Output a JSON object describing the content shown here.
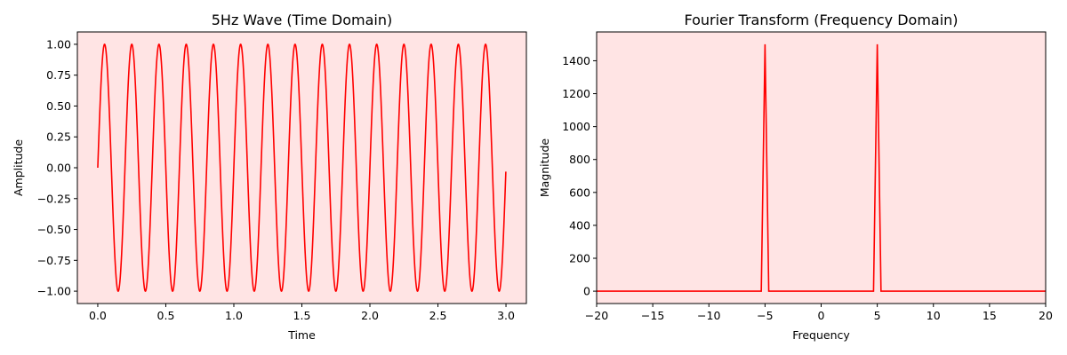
{
  "chart_data": [
    {
      "type": "line",
      "title": "5Hz Wave (Time Domain)",
      "xlabel": "Time",
      "ylabel": "Amplitude",
      "xlim": [
        -0.15,
        3.15
      ],
      "ylim": [
        -1.1,
        1.1
      ],
      "xticks": [
        0.0,
        0.5,
        1.0,
        1.5,
        2.0,
        2.5,
        3.0
      ],
      "xtick_labels": [
        "0.0",
        "0.5",
        "1.0",
        "1.5",
        "2.0",
        "2.5",
        "3.0"
      ],
      "yticks": [
        -1.0,
        -0.75,
        -0.5,
        -0.25,
        0.0,
        0.25,
        0.5,
        0.75,
        1.0
      ],
      "ytick_labels": [
        "−1.00",
        "−0.75",
        "−0.50",
        "−0.25",
        "0.00",
        "0.25",
        "0.50",
        "0.75",
        "1.00"
      ],
      "grid": false,
      "background_color": "#ffe4e4",
      "series": [
        {
          "color": "#ff0000",
          "frequency_hz": 5,
          "amplitude": 1,
          "t_range": [
            0,
            2.999
          ]
        }
      ]
    },
    {
      "type": "line",
      "title": "Fourier Transform (Frequency Domain)",
      "xlabel": "Frequency",
      "ylabel": "Magnitude",
      "xlim": [
        -20,
        20
      ],
      "ylim": [
        -75,
        1575
      ],
      "xticks": [
        -20,
        -15,
        -10,
        -5,
        0,
        5,
        10,
        15,
        20
      ],
      "xtick_labels": [
        "−20",
        "−15",
        "−10",
        "−5",
        "0",
        "5",
        "10",
        "15",
        "20"
      ],
      "yticks": [
        0,
        200,
        400,
        600,
        800,
        1000,
        1200,
        1400
      ],
      "ytick_labels": [
        "0",
        "200",
        "400",
        "600",
        "800",
        "1000",
        "1200",
        "1400"
      ],
      "grid": false,
      "background_color": "#ffe4e4",
      "series": [
        {
          "color": "#ff0000",
          "x": [
            -20,
            -5.333,
            -5,
            -4.667,
            4.667,
            5,
            5.333,
            20
          ],
          "y": [
            0,
            0,
            1500,
            0,
            0,
            1500,
            0,
            0
          ]
        }
      ]
    }
  ]
}
